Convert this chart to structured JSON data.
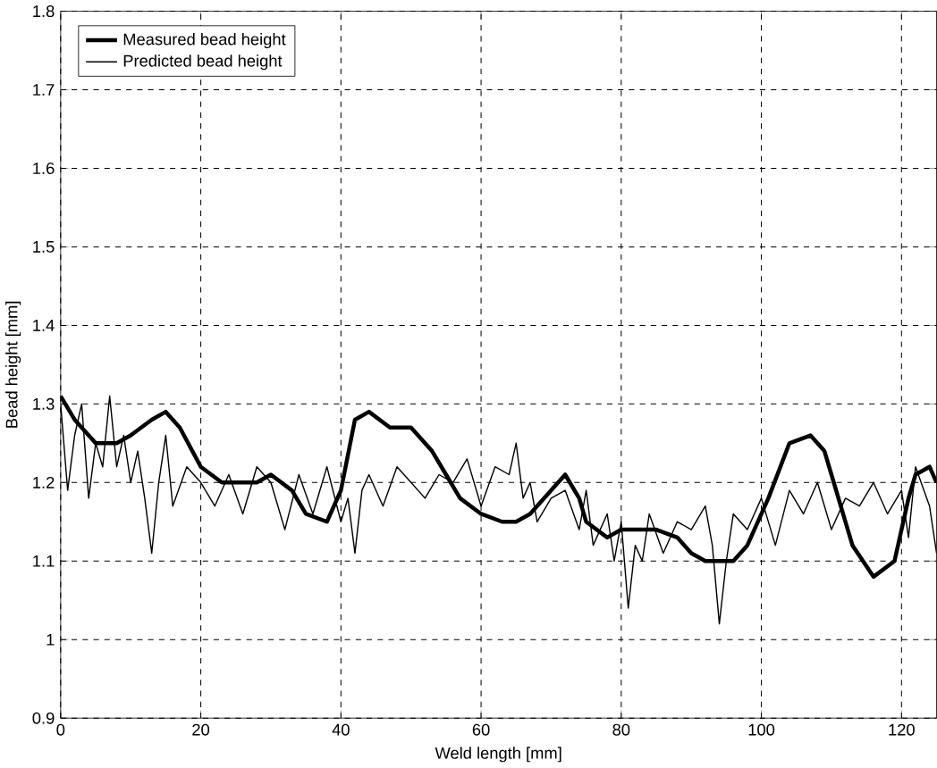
{
  "chart_data": {
    "type": "line",
    "xlabel": "Weld length [mm]",
    "ylabel": "Bead height [mm]",
    "xlim": [
      0,
      125
    ],
    "ylim": [
      0.9,
      1.8
    ],
    "xticks": [
      0,
      20,
      40,
      60,
      80,
      100,
      120
    ],
    "yticks": [
      0.9,
      1,
      1.1,
      1.2,
      1.3,
      1.4,
      1.5,
      1.6,
      1.7,
      1.8
    ],
    "grid": true,
    "legend": "top left",
    "series": [
      {
        "name": "Measured bead height",
        "color": "#000000",
        "x": [
          0,
          2,
          5,
          8,
          10,
          13,
          15,
          17,
          20,
          23,
          25,
          28,
          30,
          33,
          35,
          38,
          40,
          42,
          44,
          47,
          50,
          53,
          55,
          57,
          60,
          63,
          65,
          67,
          70,
          72,
          74,
          75,
          78,
          80,
          82,
          85,
          88,
          90,
          92,
          94,
          96,
          98,
          101,
          104,
          107,
          109,
          110,
          112,
          113,
          116,
          119,
          121,
          122,
          124,
          125
        ],
        "values": [
          1.31,
          1.28,
          1.25,
          1.25,
          1.26,
          1.28,
          1.29,
          1.27,
          1.22,
          1.2,
          1.2,
          1.2,
          1.21,
          1.19,
          1.16,
          1.15,
          1.19,
          1.28,
          1.29,
          1.27,
          1.27,
          1.24,
          1.21,
          1.18,
          1.16,
          1.15,
          1.15,
          1.16,
          1.19,
          1.21,
          1.18,
          1.15,
          1.13,
          1.14,
          1.14,
          1.14,
          1.13,
          1.11,
          1.1,
          1.1,
          1.1,
          1.12,
          1.18,
          1.25,
          1.26,
          1.24,
          1.21,
          1.15,
          1.12,
          1.08,
          1.1,
          1.18,
          1.21,
          1.22,
          1.2
        ]
      },
      {
        "name": "Predicted bead height",
        "color": "#000000",
        "x": [
          0,
          1,
          2,
          3,
          4,
          5,
          6,
          7,
          8,
          9,
          10,
          11,
          12,
          13,
          14,
          15,
          16,
          18,
          20,
          22,
          24,
          26,
          28,
          30,
          32,
          34,
          36,
          38,
          40,
          41,
          42,
          43,
          44,
          46,
          48,
          50,
          52,
          54,
          56,
          58,
          60,
          62,
          64,
          65,
          66,
          67,
          68,
          70,
          72,
          74,
          75,
          76,
          78,
          79,
          80,
          81,
          82,
          83,
          84,
          86,
          88,
          90,
          92,
          93,
          94,
          95,
          96,
          98,
          100,
          102,
          104,
          106,
          108,
          110,
          112,
          114,
          116,
          118,
          120,
          121,
          122,
          124,
          125
        ],
        "values": [
          1.3,
          1.19,
          1.26,
          1.3,
          1.18,
          1.25,
          1.22,
          1.31,
          1.22,
          1.26,
          1.2,
          1.24,
          1.18,
          1.11,
          1.2,
          1.26,
          1.17,
          1.22,
          1.2,
          1.17,
          1.21,
          1.16,
          1.22,
          1.2,
          1.14,
          1.21,
          1.16,
          1.22,
          1.15,
          1.18,
          1.11,
          1.19,
          1.21,
          1.17,
          1.22,
          1.2,
          1.18,
          1.21,
          1.2,
          1.23,
          1.17,
          1.22,
          1.21,
          1.25,
          1.18,
          1.2,
          1.15,
          1.18,
          1.19,
          1.14,
          1.19,
          1.12,
          1.16,
          1.1,
          1.15,
          1.04,
          1.12,
          1.1,
          1.16,
          1.11,
          1.15,
          1.14,
          1.17,
          1.12,
          1.02,
          1.1,
          1.16,
          1.14,
          1.18,
          1.12,
          1.19,
          1.16,
          1.2,
          1.14,
          1.18,
          1.17,
          1.2,
          1.16,
          1.19,
          1.13,
          1.22,
          1.17,
          1.11
        ]
      }
    ]
  }
}
